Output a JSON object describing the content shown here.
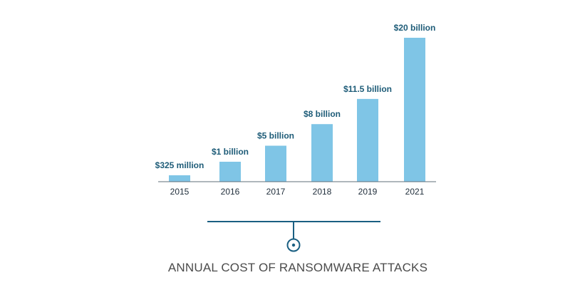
{
  "colors": {
    "bar": "#7fc5e6",
    "label": "#1e5c78",
    "axis": "#5f6f7a",
    "tick": "#1f2d3a",
    "accent": "#1a5f82",
    "caption": "#4b4b4b"
  },
  "chart_data": {
    "type": "bar",
    "title": "ANNUAL COST OF RANSOMWARE ATTACKS",
    "categories": [
      "2015",
      "2016",
      "2017",
      "2018",
      "2019",
      "2021"
    ],
    "values": [
      0.325,
      1,
      5,
      8,
      11.5,
      20
    ],
    "unit": "billion USD",
    "data_labels": [
      "$325 million",
      "$1 billion",
      "$5 billion",
      "$8 billion",
      "$11.5 billion",
      "$20 billion"
    ],
    "xlabel": "",
    "ylabel": "",
    "ylim": [
      0,
      20
    ],
    "grid": false,
    "legend": "none"
  }
}
